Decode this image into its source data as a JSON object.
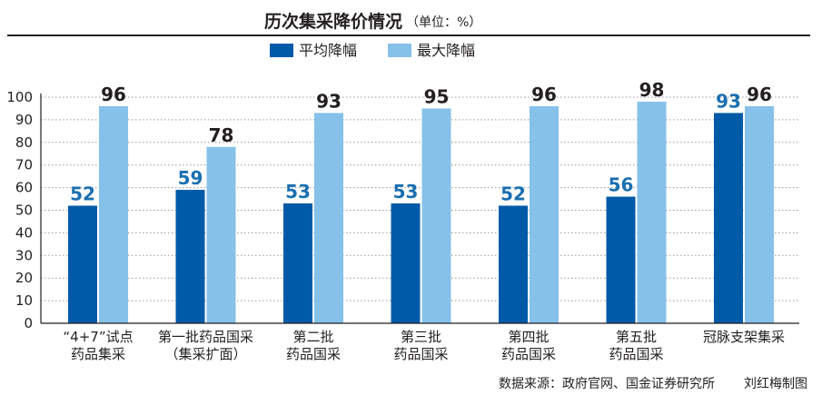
{
  "chart_data": {
    "type": "bar",
    "title": "历次集采降价情况",
    "unit_note": "（单位：%）",
    "categories": [
      [
        "“4+7”试点",
        "药品集采"
      ],
      [
        "第一批药品国采",
        "（集采扩面）"
      ],
      [
        "第二批",
        "药品国采"
      ],
      [
        "第三批",
        "药品国采"
      ],
      [
        "第四批",
        "药品国采"
      ],
      [
        "第五批",
        "药品国采"
      ],
      [
        "冠脉支架集采"
      ]
    ],
    "series": [
      {
        "name": "平均降幅",
        "values": [
          52,
          59,
          53,
          53,
          52,
          56,
          93
        ],
        "color": "#005aa7",
        "label_color": "#1a6fb0"
      },
      {
        "name": "最大降幅",
        "values": [
          96,
          78,
          93,
          95,
          96,
          98,
          96
        ],
        "color": "#86c1ea",
        "label_color": "#231f20"
      }
    ],
    "ylim": [
      0,
      100
    ],
    "yticks": [
      0,
      10,
      20,
      30,
      40,
      50,
      60,
      70,
      80,
      90,
      100
    ],
    "grid": "dotted-horizontal",
    "legend_position": "top-center",
    "source": "数据来源：政府官网、国金证券研究所",
    "author": "刘红梅制图"
  }
}
